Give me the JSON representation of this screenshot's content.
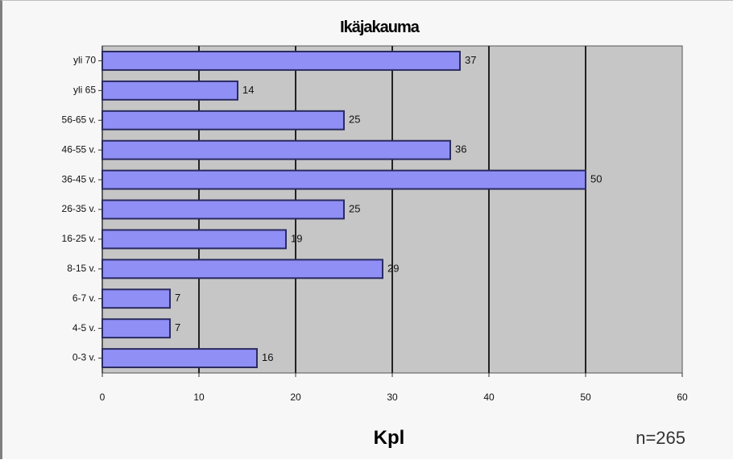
{
  "chart_data": {
    "type": "bar",
    "orientation": "horizontal",
    "title": "Ikäjakauma",
    "xlabel": "Kpl",
    "ylabel": "",
    "note": "n=265",
    "categories": [
      "yli 70",
      "yli 65",
      "56-65 v.",
      "46-55 v.",
      "36-45 v.",
      "26-35 v.",
      "16-25 v.",
      "8-15 v.",
      "6-7 v.",
      "4-5 v.",
      "0-3 v."
    ],
    "values": [
      37,
      14,
      25,
      36,
      50,
      25,
      19,
      29,
      7,
      7,
      16
    ],
    "xlim": [
      0,
      60
    ],
    "xticks": [
      0,
      10,
      20,
      30,
      40,
      50,
      60
    ],
    "grid": true,
    "legend": "none",
    "colors": {
      "bar": "#8f8ff5",
      "bar_edge": "#2b2b62",
      "plot_bg": "#c6c6c6",
      "gridline": "#222222"
    }
  }
}
